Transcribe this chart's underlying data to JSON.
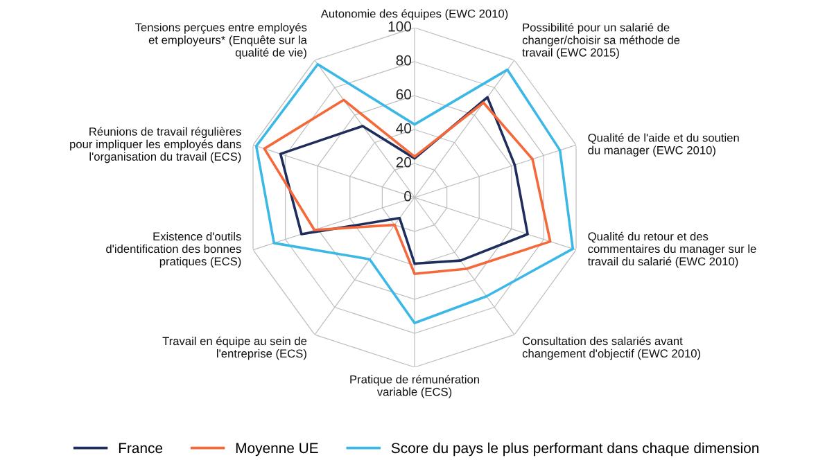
{
  "chart_data": {
    "type": "radar",
    "categories": [
      "Autonomie des équipes (EWC 2010)",
      "Possibilité pour un salarié de changer/choisir sa méthode de travail (EWC 2015)",
      "Qualité de l'aide et du soutien du manager (EWC 2010)",
      "Qualité du retour et des commentaires du manager sur le travail du salarié (EWC 2010)",
      "Consultation des salariés avant changement d'objectif (EWC 2010)",
      "Pratique de rémunération variable (ECS)",
      "Travail en équipe au sein de l'entreprise (ECS)",
      "Existence d'outils d'identification des bonnes pratiques (ECS)",
      "Réunions de travail régulières pour impliquer les employés dans l'organisation du travail (ECS)",
      "Tensions perçues entre employés et employeurs* (Enquête sur la qualité de vie)"
    ],
    "series": [
      {
        "name": "France",
        "color": "#1f2d5c",
        "values": [
          23,
          73,
          62,
          70,
          46,
          39,
          15,
          70,
          83,
          52
        ]
      },
      {
        "name": "Moyenne UE",
        "color": "#f4683a",
        "values": [
          24,
          69,
          73,
          84,
          52,
          45,
          20,
          62,
          93,
          71
        ]
      },
      {
        "name": "Score du pays le plus performant dans chaque dimension",
        "color": "#3cb8e6",
        "values": [
          43,
          93,
          90,
          98,
          72,
          74,
          45,
          87,
          98,
          97
        ]
      }
    ],
    "ylim": [
      0,
      100
    ],
    "yticks": [
      0,
      20,
      40,
      60,
      80,
      100
    ],
    "grid": true,
    "legend": "bottom",
    "marker": "none",
    "line_style": "solid"
  }
}
